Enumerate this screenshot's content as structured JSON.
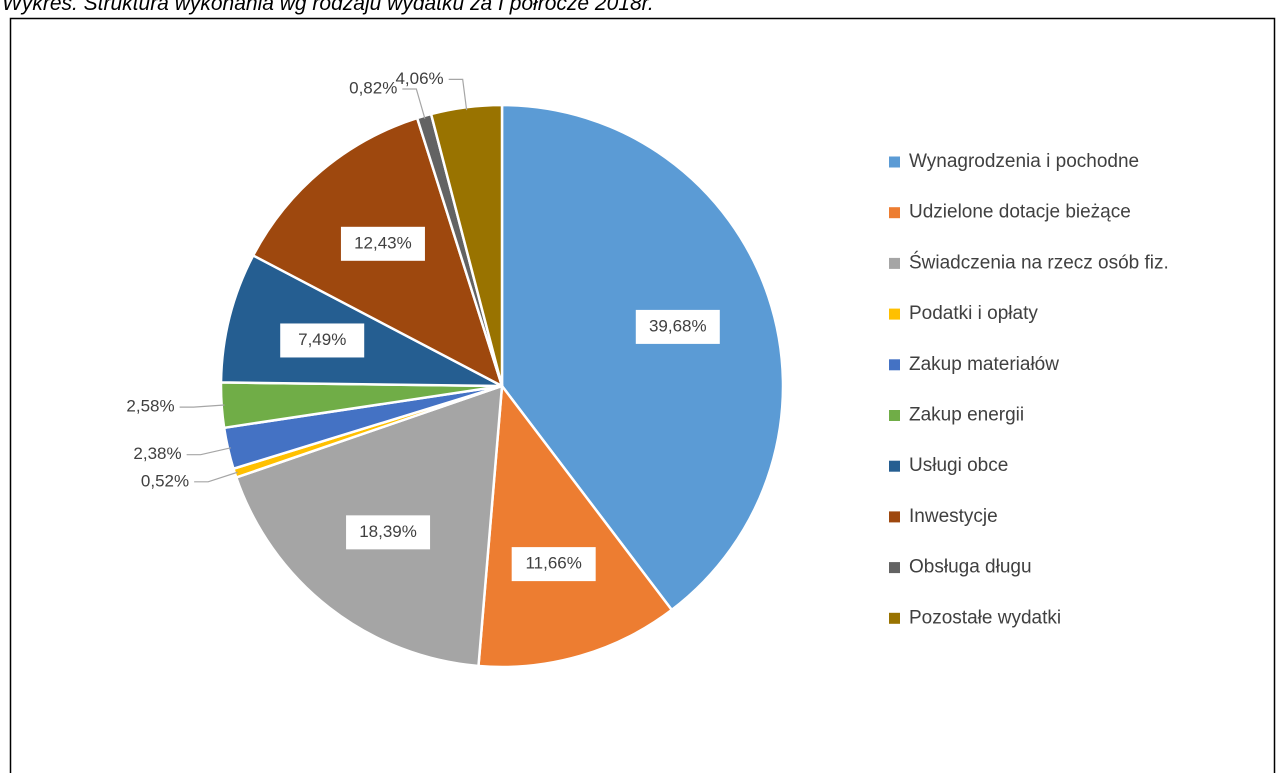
{
  "chart_data": {
    "type": "pie",
    "title": "Wykres. Struktura wykonania wg rodzaju wydatku za I półrocze 2018r.",
    "categories": [
      "Wynagrodzenia i pochodne",
      "Udzielone dotacje bieżące",
      "Świadczenia na rzecz osób fiz.",
      "Podatki i opłaty",
      "Zakup materiałów",
      "Zakup energii",
      "Usługi obce",
      "Inwestycje",
      "Obsługa długu",
      "Pozostałe wydatki"
    ],
    "values": [
      39.68,
      11.66,
      18.39,
      0.52,
      2.38,
      2.58,
      7.49,
      12.43,
      0.82,
      4.06
    ],
    "value_labels": [
      "39,68%",
      "11,66%",
      "18,39%",
      "0,52%",
      "2,38%",
      "2,58%",
      "7,49%",
      "12,43%",
      "0,82%",
      "4,06%"
    ],
    "colors": [
      "#5b9bd5",
      "#ed7d31",
      "#a5a5a5",
      "#ffc000",
      "#4472c4",
      "#70ad47",
      "#255e91",
      "#9e480e",
      "#636363",
      "#997300"
    ],
    "legend": "right"
  }
}
